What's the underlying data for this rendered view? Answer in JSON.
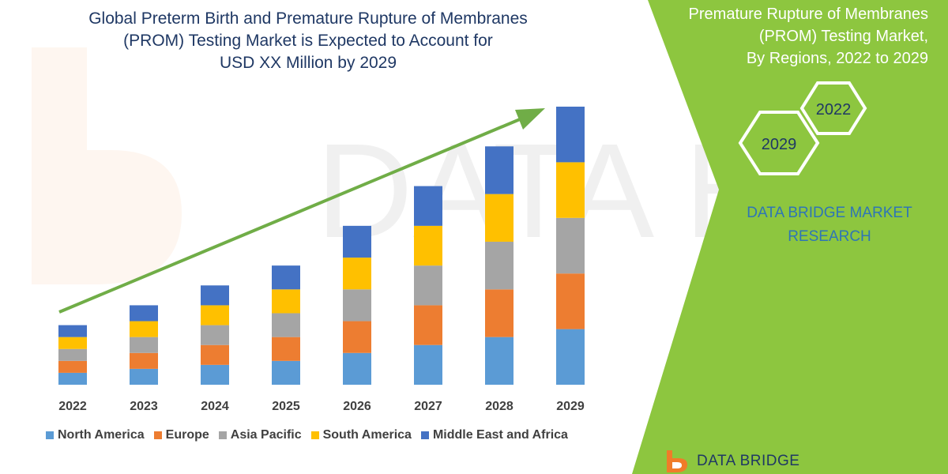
{
  "title_lines": [
    "Global Preterm Birth and Premature Rupture of Membranes",
    "(PROM) Testing Market is Expected to Account for",
    "USD XX Million by 2029"
  ],
  "side_title_lines": [
    "Premature Rupture of Membranes",
    "(PROM) Testing Market,",
    "By Regions, 2022 to 2029"
  ],
  "hex_labels": [
    "2022",
    "2029"
  ],
  "brand_lines": [
    "DATA BRIDGE MARKET",
    "RESEARCH"
  ],
  "footer_logo_text": "DATA BRIDGE",
  "watermark_text": "DATA BRIDGE",
  "colors": {
    "north_america": "#5b9bd5",
    "europe": "#ed7d31",
    "asia_pacific": "#a5a5a5",
    "south_america": "#ffc000",
    "middle_east_africa": "#4472c4",
    "arrow": "#70ad47",
    "panel": "#8dc63f",
    "title": "#1f3864",
    "brand": "#2e75b6",
    "logo_orange": "#f07c29"
  },
  "chart_data": {
    "type": "bar",
    "stacked": true,
    "title": "Global Preterm Birth and Premature Rupture of Membranes (PROM) Testing Market is Expected to Account for USD XX Million by 2029",
    "categories": [
      "2022",
      "2023",
      "2024",
      "2025",
      "2026",
      "2027",
      "2028",
      "2029"
    ],
    "series": [
      {
        "name": "North America",
        "color": "#5b9bd5",
        "values": [
          15,
          20,
          25,
          30,
          40,
          50,
          60,
          70
        ]
      },
      {
        "name": "Europe",
        "color": "#ed7d31",
        "values": [
          15,
          20,
          25,
          30,
          40,
          50,
          60,
          70
        ]
      },
      {
        "name": "Asia Pacific",
        "color": "#a5a5a5",
        "values": [
          15,
          20,
          25,
          30,
          40,
          50,
          60,
          70
        ]
      },
      {
        "name": "South America",
        "color": "#ffc000",
        "values": [
          15,
          20,
          25,
          30,
          40,
          50,
          60,
          70
        ]
      },
      {
        "name": "Middle East and Africa",
        "color": "#4472c4",
        "values": [
          15,
          20,
          25,
          30,
          40,
          50,
          60,
          70
        ]
      }
    ],
    "xlabel": "",
    "ylabel": "",
    "ylim": [
      0,
      350
    ],
    "grid": false,
    "legend_position": "bottom",
    "trend_arrow": true
  }
}
